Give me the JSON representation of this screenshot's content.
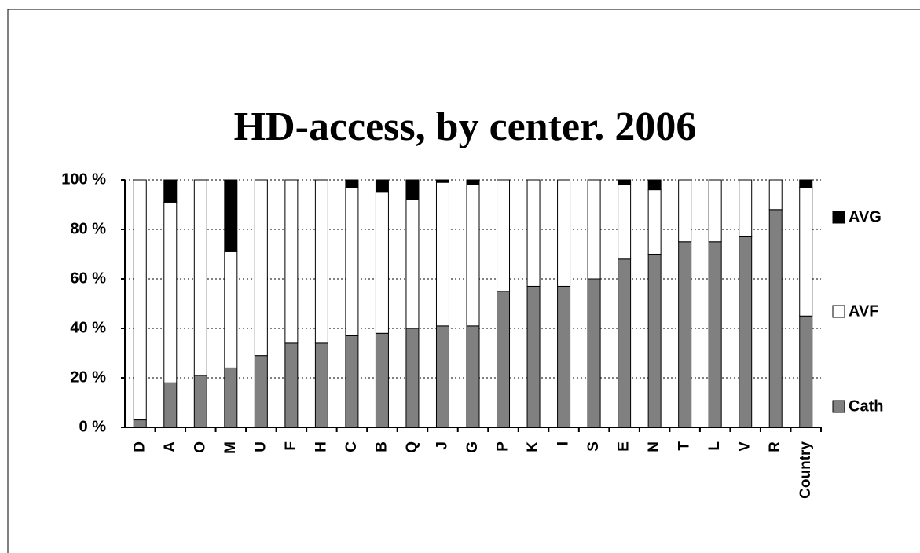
{
  "chart_data": {
    "type": "stacked_bar",
    "title": "HD-access, by center. 2006",
    "categories": [
      "D",
      "A",
      "O",
      "M",
      "U",
      "F",
      "H",
      "C",
      "B",
      "Q",
      "J",
      "G",
      "P",
      "K",
      "I",
      "S",
      "E",
      "N",
      "T",
      "L",
      "V",
      "R",
      "Country"
    ],
    "series": [
      {
        "name": "Cath",
        "color": "#808080",
        "values": [
          3,
          18,
          21,
          24,
          29,
          34,
          34,
          37,
          38,
          40,
          41,
          41,
          55,
          57,
          57,
          60,
          68,
          70,
          75,
          75,
          77,
          88,
          45
        ]
      },
      {
        "name": "AVF",
        "color": "#ffffff",
        "values": [
          97,
          73,
          79,
          47,
          71,
          66,
          66,
          60,
          57,
          52,
          58,
          57,
          45,
          43,
          43,
          40,
          30,
          26,
          25,
          25,
          23,
          12,
          52
        ]
      },
      {
        "name": "AVG",
        "color": "#000000",
        "values": [
          0,
          9,
          0,
          29,
          0,
          0,
          0,
          3,
          5,
          8,
          1,
          2,
          0,
          0,
          0,
          0,
          2,
          4,
          0,
          0,
          0,
          0,
          3
        ]
      }
    ],
    "ylim": [
      0,
      100
    ],
    "yticks": [
      {
        "value": 0,
        "label": "0 %"
      },
      {
        "value": 20,
        "label": "20 %"
      },
      {
        "value": 40,
        "label": "40 %"
      },
      {
        "value": 60,
        "label": "60 %"
      },
      {
        "value": 80,
        "label": "80 %"
      },
      {
        "value": 100,
        "label": "100 %"
      }
    ],
    "grid": true,
    "legend": "right"
  }
}
